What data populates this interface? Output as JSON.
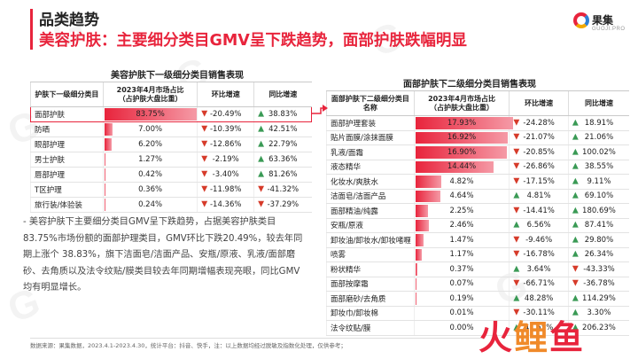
{
  "header": {
    "category_title": "品类趋势",
    "main_title": "美容护肤：主要细分类目GMV呈下跌趋势，面部护肤跌幅明显"
  },
  "logo": {
    "name": "果集",
    "sub": "GUOJI.PRO",
    "color": "#e8243c"
  },
  "left_table": {
    "title": "美容护肤下一级细分类目销售表现",
    "headers": [
      "护肤下一级细分类目",
      "2023年4月市场占比\n（占护肤大盘比重）",
      "环比增速",
      "同比增速"
    ],
    "rows": [
      {
        "name": "面部护肤",
        "share": "83.75%",
        "share_num": 83.75,
        "mom": "-20.49%",
        "mom_dir": "down",
        "yoy": "38.83%",
        "yoy_dir": "up"
      },
      {
        "name": "防晒",
        "share": "7.00%",
        "share_num": 7.0,
        "mom": "-10.39%",
        "mom_dir": "down",
        "yoy": "42.51%",
        "yoy_dir": "up"
      },
      {
        "name": "眼部护理",
        "share": "6.20%",
        "share_num": 6.2,
        "mom": "-12.86%",
        "mom_dir": "down",
        "yoy": "22.79%",
        "yoy_dir": "up"
      },
      {
        "name": "男士护肤",
        "share": "1.27%",
        "share_num": 1.27,
        "mom": "-2.19%",
        "mom_dir": "down",
        "yoy": "63.36%",
        "yoy_dir": "up"
      },
      {
        "name": "唇部护理",
        "share": "0.42%",
        "share_num": 0.42,
        "mom": "-3.40%",
        "mom_dir": "down",
        "yoy": "81.26%",
        "yoy_dir": "up"
      },
      {
        "name": "T区护理",
        "share": "0.36%",
        "share_num": 0.36,
        "mom": "-11.98%",
        "mom_dir": "down",
        "yoy": "-41.32%",
        "yoy_dir": "down"
      },
      {
        "name": "旅行装/体验装",
        "share": "0.24%",
        "share_num": 0.24,
        "mom": "-14.36%",
        "mom_dir": "down",
        "yoy": "-37.29%",
        "yoy_dir": "down"
      }
    ]
  },
  "right_table": {
    "title": "面部护肤下二级细分类目销售表现",
    "headers": [
      "面部护肤下二级细分类目\n名称",
      "2023年4月市场占比\n（占护肤大盘比重）",
      "环比增速",
      "同比增速"
    ],
    "rows": [
      {
        "name": "面部护理套装",
        "share": "17.93%",
        "share_num": 17.93,
        "mom": "-24.28%",
        "mom_dir": "down",
        "yoy": "18.91%",
        "yoy_dir": "up"
      },
      {
        "name": "贴片面膜/涂抹面膜",
        "share": "16.92%",
        "share_num": 16.92,
        "mom": "-21.07%",
        "mom_dir": "down",
        "yoy": "21.06%",
        "yoy_dir": "up"
      },
      {
        "name": "乳液/面霜",
        "share": "16.90%",
        "share_num": 16.9,
        "mom": "-20.85%",
        "mom_dir": "down",
        "yoy": "100.02%",
        "yoy_dir": "up"
      },
      {
        "name": "液态精华",
        "share": "14.44%",
        "share_num": 14.44,
        "mom": "-26.86%",
        "mom_dir": "down",
        "yoy": "38.55%",
        "yoy_dir": "up"
      },
      {
        "name": "化妆水/爽肤水",
        "share": "4.82%",
        "share_num": 4.82,
        "mom": "-17.15%",
        "mom_dir": "down",
        "yoy": "9.11%",
        "yoy_dir": "up"
      },
      {
        "name": "洁面皂/洁面产品",
        "share": "4.64%",
        "share_num": 4.64,
        "mom": "4.81%",
        "mom_dir": "up",
        "yoy": "69.10%",
        "yoy_dir": "up"
      },
      {
        "name": "面部精油/纯露",
        "share": "2.25%",
        "share_num": 2.25,
        "mom": "-14.41%",
        "mom_dir": "down",
        "yoy": "180.69%",
        "yoy_dir": "up"
      },
      {
        "name": "安瓶/原液",
        "share": "2.46%",
        "share_num": 2.46,
        "mom": "6.56%",
        "mom_dir": "up",
        "yoy": "87.41%",
        "yoy_dir": "up"
      },
      {
        "name": "卸妆油/卸妆水/卸妆啫喱",
        "share": "1.47%",
        "share_num": 1.47,
        "mom": "-9.46%",
        "mom_dir": "down",
        "yoy": "29.80%",
        "yoy_dir": "up"
      },
      {
        "name": "喷雾",
        "share": "1.17%",
        "share_num": 1.17,
        "mom": "-16.78%",
        "mom_dir": "down",
        "yoy": "26.34%",
        "yoy_dir": "up"
      },
      {
        "name": "粉状精华",
        "share": "0.37%",
        "share_num": 0.37,
        "mom": "3.64%",
        "mom_dir": "up",
        "yoy": "-43.33%",
        "yoy_dir": "down"
      },
      {
        "name": "面部按摩霜",
        "share": "0.07%",
        "share_num": 0.07,
        "mom": "-66.71%",
        "mom_dir": "down",
        "yoy": "-36.78%",
        "yoy_dir": "down"
      },
      {
        "name": "面部磨砂/去角质",
        "share": "0.19%",
        "share_num": 0.19,
        "mom": "48.28%",
        "mom_dir": "up",
        "yoy": "114.29%",
        "yoy_dir": "up"
      },
      {
        "name": "卸妆巾/卸妆棉",
        "share": "0.01%",
        "share_num": 0.01,
        "mom": "-30.11%",
        "mom_dir": "down",
        "yoy": "3.30%",
        "yoy_dir": "up"
      },
      {
        "name": "法令纹贴/膜",
        "share": "0.00%",
        "share_num": 0.0,
        "mom": "41.55%",
        "mom_dir": "up",
        "yoy": "206.23%",
        "yoy_dir": "up"
      }
    ]
  },
  "description": "- 美容护肤下主要细分类目GMV呈下跌趋势，占据美容护肤类目83.75%市场份额的面部护理类目，GMV环比下跌20.49%，较去年同期上涨个 38.83%，旗下洁面皂/洁面产品、安瓶/原液、乳液/面部磨砂、去角质以及法令纹贴/膜类目较去年同期增幅表现亮眼，同比GMV均有明显增长。",
  "footer": "数据来源：果集数据，2023.4.1-2023.4.30，统计平台：抖音、快手，注：以上数据均经过脱敏及指数化处理，仅供参考；",
  "brand_watermark": {
    "chars": [
      "火",
      "鲤",
      "鱼"
    ]
  },
  "colors": {
    "accent": "#e8243c",
    "down": "#d63b2a",
    "up": "#3a9a55"
  }
}
